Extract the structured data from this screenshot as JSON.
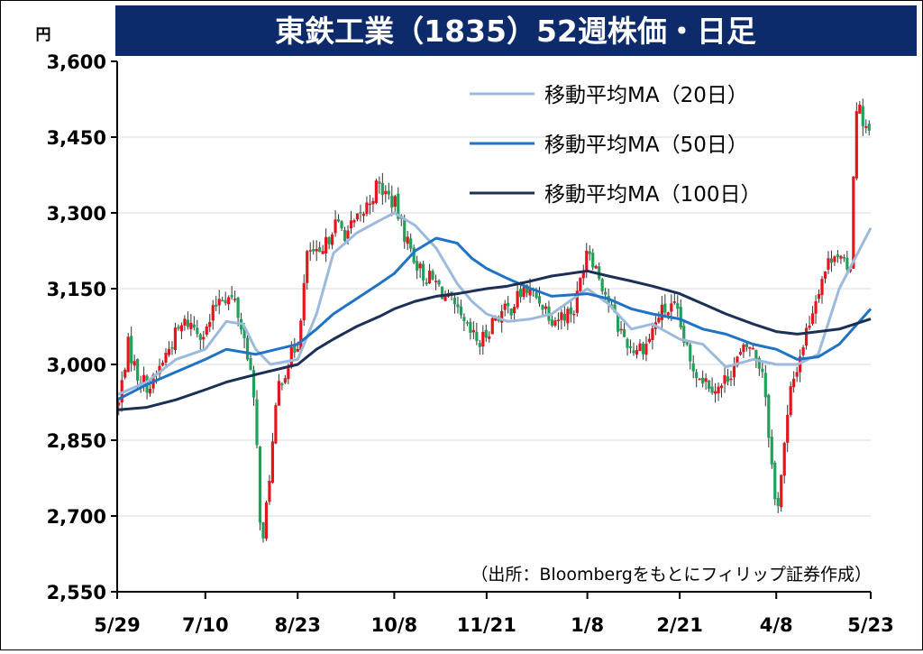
{
  "title": "東鉄工業（1835）52週株価・日足",
  "colors": {
    "title_bg": "#0d2a6a",
    "title_fg": "#ffffff",
    "up": "#e8141b",
    "down": "#1fa15a",
    "ma20": "#9db9dc",
    "ma50": "#1f73c4",
    "ma100": "#1b2f57",
    "grid": "#d9d9d9"
  },
  "chart_data": {
    "type": "candlestick",
    "title": "東鉄工業（1835）52週株価・日足",
    "y_unit": "円",
    "ylim": [
      2550,
      3600
    ],
    "y_ticks": [
      3600,
      3450,
      3300,
      3150,
      3000,
      2850,
      2700,
      2550
    ],
    "y_tick_labels": [
      "3,600",
      "3,450",
      "3,300",
      "3,150",
      "3,000",
      "2,850",
      "2,700",
      "2,550"
    ],
    "x_tick_labels": [
      "5/29",
      "7/10",
      "8/23",
      "10/8",
      "11/21",
      "1/8",
      "2/21",
      "4/8",
      "5/23"
    ],
    "grid": "horizontal",
    "legend_position": "top-right",
    "source": "（出所：Bloombergをもとにフィリップ証券作成）",
    "series": [
      {
        "name": "移動平均MA（20日）",
        "color": "#9db9dc",
        "points": [
          [
            "5/29",
            2940
          ],
          [
            "6/12",
            2965
          ],
          [
            "6/26",
            3010
          ],
          [
            "7/10",
            3030
          ],
          [
            "7/20",
            3085
          ],
          [
            "7/28",
            3080
          ],
          [
            "8/3",
            3030
          ],
          [
            "8/10",
            3000
          ],
          [
            "8/23",
            3010
          ],
          [
            "9/1",
            3100
          ],
          [
            "9/9",
            3220
          ],
          [
            "9/20",
            3260
          ],
          [
            "10/1",
            3285
          ],
          [
            "10/8",
            3300
          ],
          [
            "10/18",
            3275
          ],
          [
            "10/28",
            3230
          ],
          [
            "11/7",
            3160
          ],
          [
            "11/14",
            3125
          ],
          [
            "11/21",
            3100
          ],
          [
            "12/1",
            3085
          ],
          [
            "12/12",
            3090
          ],
          [
            "12/22",
            3100
          ],
          [
            "1/8",
            3150
          ],
          [
            "1/18",
            3120
          ],
          [
            "1/29",
            3070
          ],
          [
            "2/8",
            3080
          ],
          [
            "2/21",
            3050
          ],
          [
            "3/4",
            3040
          ],
          [
            "3/15",
            2995
          ],
          [
            "3/28",
            3010
          ],
          [
            "4/8",
            3000
          ],
          [
            "4/18",
            3000
          ],
          [
            "4/28",
            3020
          ],
          [
            "5/8",
            3150
          ],
          [
            "5/23",
            3270
          ]
        ]
      },
      {
        "name": "移動平均MA（50日）",
        "color": "#1f73c4",
        "points": [
          [
            "5/29",
            2930
          ],
          [
            "6/12",
            2960
          ],
          [
            "6/26",
            2985
          ],
          [
            "7/10",
            3010
          ],
          [
            "7/20",
            3030
          ],
          [
            "8/3",
            3020
          ],
          [
            "8/23",
            3040
          ],
          [
            "9/1",
            3070
          ],
          [
            "9/9",
            3100
          ],
          [
            "9/20",
            3130
          ],
          [
            "10/1",
            3160
          ],
          [
            "10/8",
            3180
          ],
          [
            "10/18",
            3225
          ],
          [
            "10/28",
            3250
          ],
          [
            "11/7",
            3240
          ],
          [
            "11/14",
            3210
          ],
          [
            "11/21",
            3190
          ],
          [
            "12/1",
            3170
          ],
          [
            "12/12",
            3150
          ],
          [
            "12/22",
            3135
          ],
          [
            "1/8",
            3140
          ],
          [
            "1/18",
            3130
          ],
          [
            "1/29",
            3110
          ],
          [
            "2/8",
            3100
          ],
          [
            "2/21",
            3090
          ],
          [
            "3/4",
            3070
          ],
          [
            "3/15",
            3060
          ],
          [
            "3/28",
            3040
          ],
          [
            "4/8",
            3030
          ],
          [
            "4/18",
            3010
          ],
          [
            "4/28",
            3015
          ],
          [
            "5/8",
            3040
          ],
          [
            "5/23",
            3110
          ]
        ]
      },
      {
        "name": "移動平均MA（100日）",
        "color": "#1b2f57",
        "points": [
          [
            "5/29",
            2910
          ],
          [
            "6/12",
            2915
          ],
          [
            "6/26",
            2930
          ],
          [
            "7/10",
            2950
          ],
          [
            "7/20",
            2965
          ],
          [
            "8/3",
            2980
          ],
          [
            "8/23",
            3000
          ],
          [
            "9/1",
            3030
          ],
          [
            "9/9",
            3050
          ],
          [
            "9/20",
            3075
          ],
          [
            "10/1",
            3095
          ],
          [
            "10/8",
            3110
          ],
          [
            "10/18",
            3125
          ],
          [
            "10/28",
            3135
          ],
          [
            "11/7",
            3140
          ],
          [
            "11/14",
            3145
          ],
          [
            "11/21",
            3150
          ],
          [
            "12/1",
            3155
          ],
          [
            "12/12",
            3165
          ],
          [
            "12/22",
            3175
          ],
          [
            "1/8",
            3185
          ],
          [
            "1/18",
            3175
          ],
          [
            "1/29",
            3165
          ],
          [
            "2/8",
            3155
          ],
          [
            "2/21",
            3140
          ],
          [
            "3/4",
            3120
          ],
          [
            "3/15",
            3100
          ],
          [
            "3/28",
            3080
          ],
          [
            "4/8",
            3065
          ],
          [
            "4/18",
            3060
          ],
          [
            "4/28",
            3065
          ],
          [
            "5/8",
            3070
          ],
          [
            "5/23",
            3090
          ]
        ]
      }
    ],
    "price_path": [
      [
        "5/29",
        2900
      ],
      [
        "6/3",
        3040
      ],
      [
        "6/8",
        2975
      ],
      [
        "6/14",
        2955
      ],
      [
        "6/20",
        3010
      ],
      [
        "6/26",
        3060
      ],
      [
        "7/1",
        3085
      ],
      [
        "7/10",
        3060
      ],
      [
        "7/17",
        3140
      ],
      [
        "7/24",
        3125
      ],
      [
        "7/31",
        3010
      ],
      [
        "8/3",
        2880
      ],
      [
        "8/6",
        2620
      ],
      [
        "8/9",
        2760
      ],
      [
        "8/14",
        2960
      ],
      [
        "8/23",
        3045
      ],
      [
        "8/28",
        3230
      ],
      [
        "9/3",
        3205
      ],
      [
        "9/9",
        3280
      ],
      [
        "9/15",
        3260
      ],
      [
        "9/22",
        3290
      ],
      [
        "9/30",
        3355
      ],
      [
        "10/8",
        3320
      ],
      [
        "10/14",
        3245
      ],
      [
        "10/21",
        3180
      ],
      [
        "10/28",
        3160
      ],
      [
        "11/4",
        3120
      ],
      [
        "11/11",
        3070
      ],
      [
        "11/18",
        3040
      ],
      [
        "11/25",
        3095
      ],
      [
        "12/2",
        3110
      ],
      [
        "12/9",
        3150
      ],
      [
        "12/16",
        3130
      ],
      [
        "12/23",
        3090
      ],
      [
        "1/2",
        3110
      ],
      [
        "1/8",
        3240
      ],
      [
        "1/15",
        3160
      ],
      [
        "1/22",
        3080
      ],
      [
        "1/29",
        3030
      ],
      [
        "2/5",
        3040
      ],
      [
        "2/12",
        3105
      ],
      [
        "2/19",
        3110
      ],
      [
        "2/26",
        3000
      ],
      [
        "3/5",
        2970
      ],
      [
        "3/12",
        2950
      ],
      [
        "3/19",
        3000
      ],
      [
        "3/26",
        3040
      ],
      [
        "4/2",
        2985
      ],
      [
        "4/5",
        2840
      ],
      [
        "4/8",
        2700
      ],
      [
        "4/15",
        2950
      ],
      [
        "4/22",
        3060
      ],
      [
        "4/29",
        3165
      ],
      [
        "5/6",
        3230
      ],
      [
        "5/13",
        3170
      ],
      [
        "5/16",
        3520
      ],
      [
        "5/23",
        3445
      ]
    ]
  }
}
